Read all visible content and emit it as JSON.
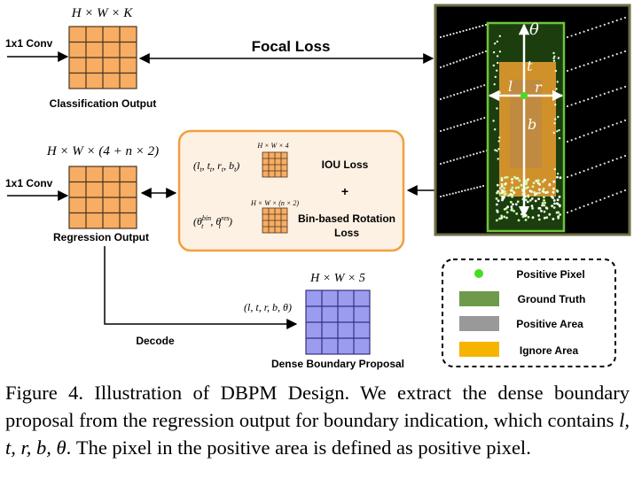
{
  "classification": {
    "dims": "H × W × K",
    "conv_label": "1x1 Conv",
    "caption": "Classification Output",
    "loss_label": "Focal Loss"
  },
  "regression": {
    "dims": "H × W × (4 + n × 2)",
    "conv_label": "1x1 Conv",
    "caption": "Regression Output",
    "decode_label": "Decode"
  },
  "loss_box": {
    "small_dims_1": "H × W × 4",
    "vars_1": "(lt, tt, rt, bt)",
    "loss_1": "IOU Loss",
    "plus": "+",
    "small_dims_2": "H × W × (n × 2)",
    "vars_2": "(θt^bin, θt^res)",
    "loss_2_line1": "Bin-based Rotation",
    "loss_2_line2": "Loss"
  },
  "proposal": {
    "dims": "H × W × 5",
    "vars": "(l, t, r, b, θ)",
    "caption": "Dense Boundary Proposal"
  },
  "point_cloud": {
    "labels": {
      "theta": "θ",
      "t": "t",
      "l": "l",
      "r": "r",
      "b": "b"
    }
  },
  "legend": {
    "items": [
      {
        "label": "Positive Pixel",
        "color": "#44dd22",
        "shape": "dot"
      },
      {
        "label": "Ground Truth",
        "color": "#6e9a4c",
        "shape": "rect"
      },
      {
        "label": "Positive Area",
        "color": "#999999",
        "shape": "rect"
      },
      {
        "label": "Ignore Area",
        "color": "#f6b400",
        "shape": "rect"
      }
    ]
  },
  "caption": {
    "figure_label": "Figure 4.",
    "text_1": "Illustration of DBPM Design.  We extract the dense boundary proposal from the regression output for boundary indication, which contains ",
    "vars": "l, t, r, b, θ",
    "text_2": ". The pixel in the positive area is defined as positive pixel."
  },
  "colors": {
    "orange_grid": "#f7ad63",
    "purple_grid": "#9b9bf0",
    "loss_box_border": "#f0a040",
    "loss_box_fill": "#fdf1e4",
    "ground_truth": "#3f8a1e",
    "ignore_area": "#f0a030"
  }
}
